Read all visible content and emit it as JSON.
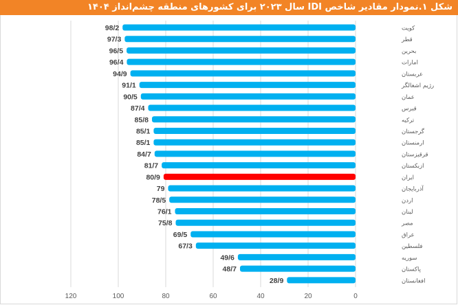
{
  "chart_data": {
    "type": "bar",
    "orientation": "horizontal",
    "title": "شکل ۱.نمودار مقادیر شاخص IDI سال ۲۰۲۳ برای کشورهای منطقه چشم‌انداز ۱۴۰۴",
    "categories": [
      "کویت",
      "قطر",
      "بحرین",
      "امارات",
      "عربستان",
      "رژیم اشغالگر",
      "عمان",
      "قبرس",
      "ترکیه",
      "گرجستان",
      "ارمنستان",
      "قرقیزستان",
      "ازبکستان",
      "ایران",
      "آذربایجان",
      "اردن",
      "لبنان",
      "مصر",
      "عراق",
      "فلسطین",
      "سوریه",
      "پاکستان",
      "افغانستان"
    ],
    "values": [
      98.2,
      97.3,
      96.5,
      96.4,
      94.9,
      91.1,
      90.5,
      87.4,
      85.8,
      85.1,
      85.1,
      84.7,
      81.7,
      80.9,
      79,
      78.5,
      76.1,
      75.8,
      69.5,
      67.3,
      49.6,
      48.7,
      28.9
    ],
    "value_labels": [
      "98/2",
      "97/3",
      "96/5",
      "96/4",
      "94/9",
      "91/1",
      "90/5",
      "87/4",
      "85/8",
      "85/1",
      "85/1",
      "84/7",
      "81/7",
      "80/9",
      "79",
      "78/5",
      "76/1",
      "75/8",
      "69/5",
      "67/3",
      "49/6",
      "48/7",
      "28/9"
    ],
    "xlim": [
      0,
      120
    ],
    "x_reversed": true,
    "xticks": [
      "0",
      "20",
      "40",
      "60",
      "80",
      "100",
      "120"
    ],
    "grid": true,
    "colors": {
      "bar": "#00B0F0",
      "highlight": "#FF0000",
      "highlight_category": "ایران",
      "title_bg": "#F28426"
    }
  }
}
